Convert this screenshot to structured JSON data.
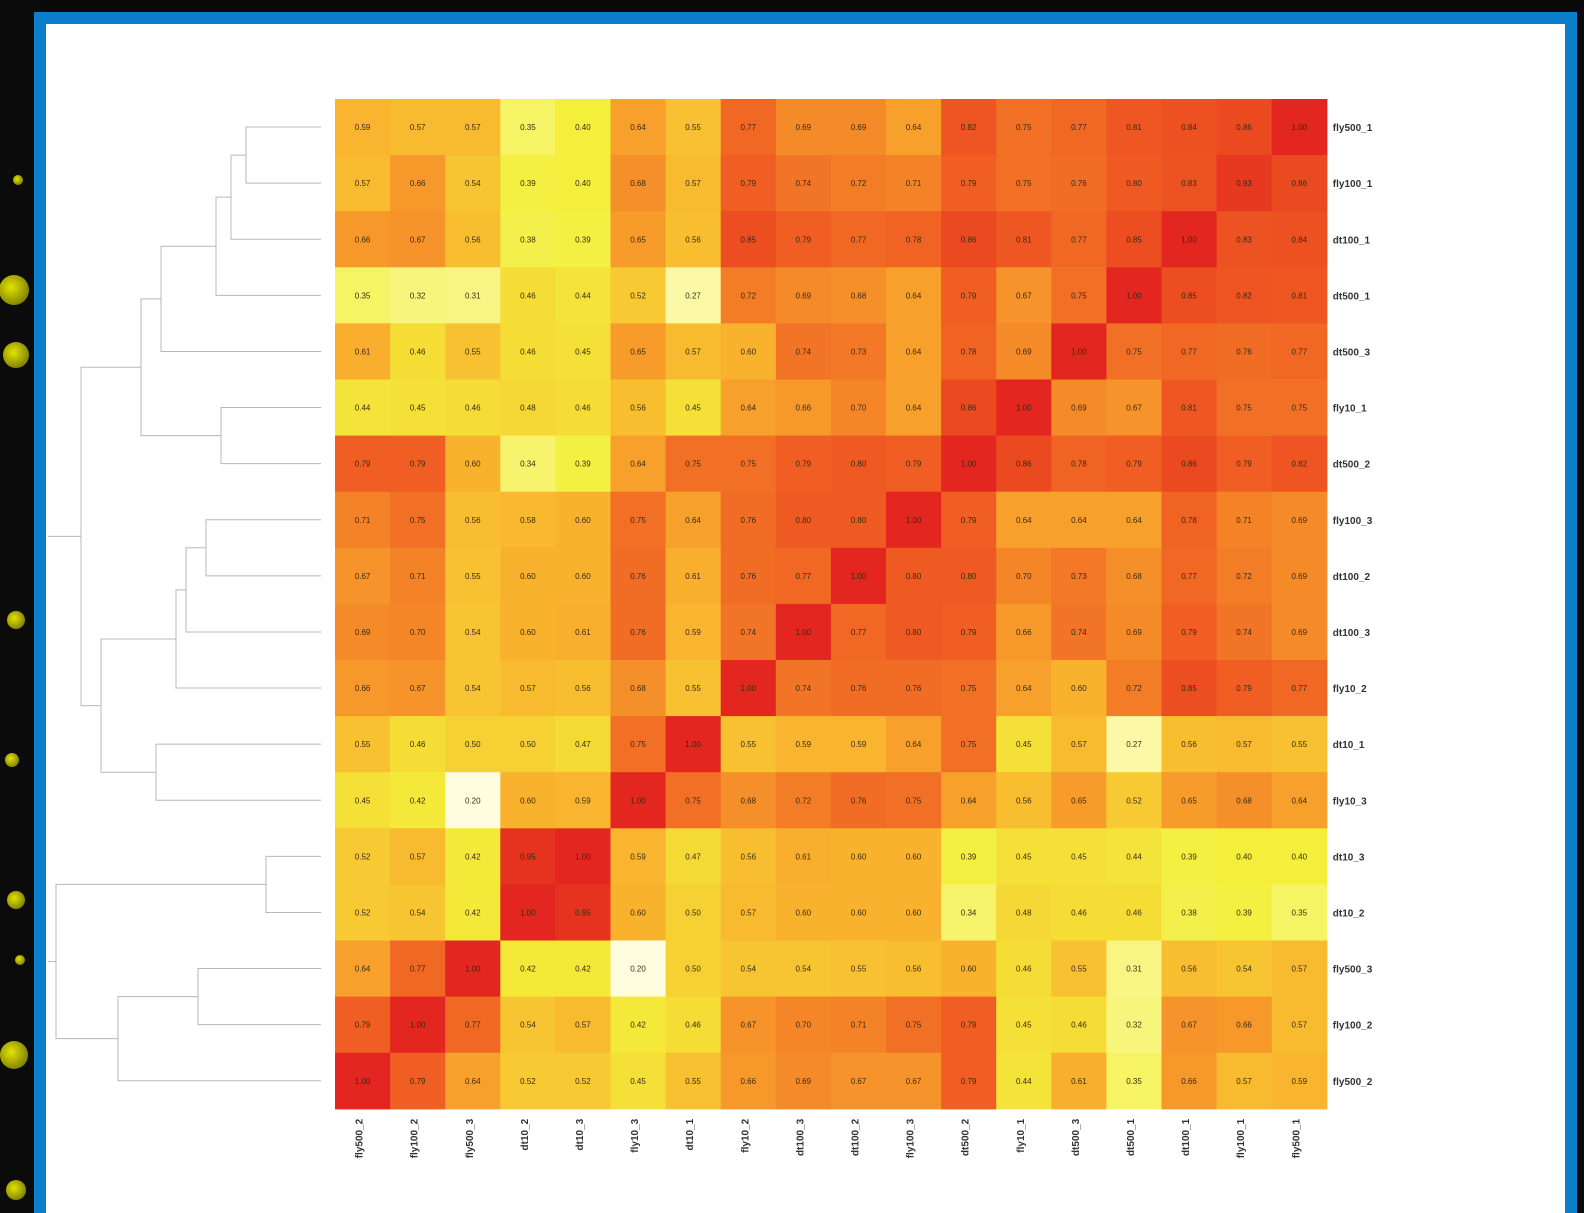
{
  "chart_data": {
    "type": "heatmap",
    "rows": [
      "fly500_1",
      "fly100_1",
      "dt100_1",
      "dt500_1",
      "dt500_3",
      "fly10_1",
      "dt500_2",
      "fly100_3",
      "dt100_2",
      "dt100_3",
      "fly10_2",
      "dt10_1",
      "fly10_3",
      "dt10_3",
      "dt10_2",
      "fly500_3",
      "fly100_2",
      "fly500_2"
    ],
    "columns": [
      "fly500_2",
      "fly100_2",
      "fly500_3",
      "dt10_2",
      "dt10_3",
      "fly10_3",
      "dt10_1",
      "fly10_2",
      "dt100_3",
      "dt100_2",
      "fly100_3",
      "dt500_2",
      "fly10_1",
      "dt500_3",
      "dt500_1",
      "dt100_1",
      "fly100_1",
      "fly500_1"
    ],
    "values": [
      [
        0.59,
        0.57,
        0.57,
        0.35,
        0.4,
        0.64,
        0.55,
        0.77,
        0.69,
        0.69,
        0.64,
        0.82,
        0.75,
        0.77,
        0.81,
        0.84,
        0.86,
        1.0
      ],
      [
        0.57,
        0.66,
        0.54,
        0.39,
        0.4,
        0.68,
        0.57,
        0.79,
        0.74,
        0.72,
        0.71,
        0.79,
        0.75,
        0.76,
        0.8,
        0.83,
        0.93,
        0.86
      ],
      [
        0.66,
        0.67,
        0.56,
        0.38,
        0.39,
        0.65,
        0.56,
        0.85,
        0.79,
        0.77,
        0.78,
        0.86,
        0.81,
        0.77,
        0.85,
        1.0,
        0.83,
        0.84
      ],
      [
        0.35,
        0.32,
        0.31,
        0.46,
        0.44,
        0.52,
        0.27,
        0.72,
        0.69,
        0.68,
        0.64,
        0.79,
        0.67,
        0.75,
        1.0,
        0.85,
        0.82,
        0.81
      ],
      [
        0.61,
        0.46,
        0.55,
        0.46,
        0.45,
        0.65,
        0.57,
        0.6,
        0.74,
        0.73,
        0.64,
        0.78,
        0.69,
        1.0,
        0.75,
        0.77,
        0.76,
        0.77
      ],
      [
        0.44,
        0.45,
        0.46,
        0.48,
        0.46,
        0.56,
        0.45,
        0.64,
        0.66,
        0.7,
        0.64,
        0.86,
        1.0,
        0.69,
        0.67,
        0.81,
        0.75,
        0.75
      ],
      [
        0.79,
        0.79,
        0.6,
        0.34,
        0.39,
        0.64,
        0.75,
        0.75,
        0.79,
        0.8,
        0.79,
        1.0,
        0.86,
        0.78,
        0.79,
        0.86,
        0.79,
        0.82
      ],
      [
        0.71,
        0.75,
        0.56,
        0.58,
        0.6,
        0.75,
        0.64,
        0.76,
        0.8,
        0.8,
        1.0,
        0.79,
        0.64,
        0.64,
        0.64,
        0.78,
        0.71,
        0.69
      ],
      [
        0.67,
        0.71,
        0.55,
        0.6,
        0.6,
        0.76,
        0.61,
        0.76,
        0.77,
        1.0,
        0.8,
        0.8,
        0.7,
        0.73,
        0.68,
        0.77,
        0.72,
        0.69
      ],
      [
        0.69,
        0.7,
        0.54,
        0.6,
        0.61,
        0.76,
        0.59,
        0.74,
        1.0,
        0.77,
        0.8,
        0.79,
        0.66,
        0.74,
        0.69,
        0.79,
        0.74,
        0.69
      ],
      [
        0.66,
        0.67,
        0.54,
        0.57,
        0.56,
        0.68,
        0.55,
        1.0,
        0.74,
        0.76,
        0.76,
        0.75,
        0.64,
        0.6,
        0.72,
        0.85,
        0.79,
        0.77
      ],
      [
        0.55,
        0.46,
        0.5,
        0.5,
        0.47,
        0.75,
        1.0,
        0.55,
        0.59,
        0.59,
        0.64,
        0.75,
        0.45,
        0.57,
        0.27,
        0.56,
        0.57,
        0.55
      ],
      [
        0.45,
        0.42,
        0.2,
        0.6,
        0.59,
        1.0,
        0.75,
        0.68,
        0.72,
        0.76,
        0.75,
        0.64,
        0.56,
        0.65,
        0.52,
        0.65,
        0.68,
        0.64
      ],
      [
        0.52,
        0.57,
        0.42,
        0.95,
        1.0,
        0.59,
        0.47,
        0.56,
        0.61,
        0.6,
        0.6,
        0.39,
        0.45,
        0.45,
        0.44,
        0.39,
        0.4,
        0.4
      ],
      [
        0.52,
        0.54,
        0.42,
        1.0,
        0.95,
        0.6,
        0.5,
        0.57,
        0.6,
        0.6,
        0.6,
        0.34,
        0.48,
        0.46,
        0.46,
        0.38,
        0.39,
        0.35
      ],
      [
        0.64,
        0.77,
        1.0,
        0.42,
        0.42,
        0.2,
        0.5,
        0.54,
        0.54,
        0.55,
        0.56,
        0.6,
        0.46,
        0.55,
        0.31,
        0.56,
        0.54,
        0.57
      ],
      [
        0.79,
        1.0,
        0.77,
        0.54,
        0.57,
        0.42,
        0.46,
        0.67,
        0.7,
        0.71,
        0.75,
        0.79,
        0.45,
        0.46,
        0.32,
        0.67,
        0.66,
        0.57
      ],
      [
        1.0,
        0.79,
        0.64,
        0.52,
        0.52,
        0.45,
        0.55,
        0.66,
        0.69,
        0.67,
        0.67,
        0.79,
        0.44,
        0.61,
        0.35,
        0.66,
        0.57,
        0.59
      ]
    ],
    "vmin": 0.2,
    "vmax": 1.0,
    "colormap": [
      "#fffde0",
      "#f3ef3a",
      "#f9b22e",
      "#ef5a22",
      "#e3261f"
    ],
    "dendrogram": "left"
  },
  "colors": {
    "frame": "#0b7fcb",
    "panel": "#ffffff",
    "dendrogram_line": "#b8b8b8",
    "background_strip": "#0b0b0b",
    "bead": "#e2e300"
  }
}
